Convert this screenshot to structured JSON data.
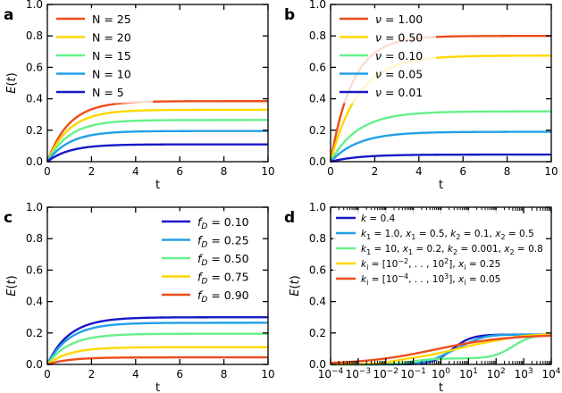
{
  "colors": {
    "dark_blue": "#1818c8",
    "light_blue": "#22a0e8",
    "green": "#66f08a",
    "yellow": "#ffd700",
    "orange": "#ee4c1c"
  },
  "chart_data": [
    {
      "type": "line",
      "panel_label": "a",
      "xlabel": "t",
      "ylabel": "E(t)",
      "xlim": [
        0,
        10
      ],
      "ylim": [
        0,
        1.0
      ],
      "xticks": [
        0,
        2,
        4,
        6,
        8,
        10
      ],
      "yticks": [
        0.0,
        0.2,
        0.4,
        0.6,
        0.8,
        1.0
      ],
      "xtick_labels": [
        "0",
        "2",
        "4",
        "6",
        "8",
        "10"
      ],
      "ytick_labels": [
        "0.0",
        "0.2",
        "0.4",
        "0.6",
        "0.8",
        "1.0"
      ],
      "grid": false,
      "legend_location": "upper-left",
      "series": [
        {
          "name": "N = 25",
          "color": "#ee4c1c",
          "plateau": 0.385,
          "rate": 1.0
        },
        {
          "name": "N = 20",
          "color": "#ffd700",
          "plateau": 0.33,
          "rate": 1.0
        },
        {
          "name": "N = 15",
          "color": "#66f08a",
          "plateau": 0.265,
          "rate": 1.0
        },
        {
          "name": "N = 10",
          "color": "#22a0e8",
          "plateau": 0.195,
          "rate": 1.0
        },
        {
          "name": "N = 5",
          "color": "#1818c8",
          "plateau": 0.11,
          "rate": 1.0
        }
      ]
    },
    {
      "type": "line",
      "panel_label": "b",
      "xlabel": "t",
      "ylabel": "",
      "xlim": [
        0,
        10
      ],
      "ylim": [
        0,
        1.0
      ],
      "xticks": [
        0,
        2,
        4,
        6,
        8,
        10
      ],
      "yticks": [
        0.0,
        0.2,
        0.4,
        0.6,
        0.8,
        1.0
      ],
      "xtick_labels": [
        "0",
        "2",
        "4",
        "6",
        "8",
        "10"
      ],
      "ytick_labels": [
        "0.0",
        "0.2",
        "0.4",
        "0.6",
        "0.8",
        "1.0"
      ],
      "grid": false,
      "legend_location": "upper-left",
      "series": [
        {
          "name": "ν = 1.00",
          "color": "#ee4c1c",
          "plateau": 0.8,
          "rate": 1.0
        },
        {
          "name": "ν = 0.50",
          "color": "#ffd700",
          "plateau": 0.675,
          "rate": 0.8
        },
        {
          "name": "ν = 0.10",
          "color": "#66f08a",
          "plateau": 0.32,
          "rate": 0.8
        },
        {
          "name": "ν = 0.05",
          "color": "#22a0e8",
          "plateau": 0.19,
          "rate": 0.8
        },
        {
          "name": "ν = 0.01",
          "color": "#1818c8",
          "plateau": 0.045,
          "rate": 0.8
        }
      ]
    },
    {
      "type": "line",
      "panel_label": "c",
      "xlabel": "t",
      "ylabel": "E(t)",
      "xlim": [
        0,
        10
      ],
      "ylim": [
        0,
        1.0
      ],
      "xticks": [
        0,
        2,
        4,
        6,
        8,
        10
      ],
      "yticks": [
        0.0,
        0.2,
        0.4,
        0.6,
        0.8,
        1.0
      ],
      "xtick_labels": [
        "0",
        "2",
        "4",
        "6",
        "8",
        "10"
      ],
      "ytick_labels": [
        "0.0",
        "0.2",
        "0.4",
        "0.6",
        "0.8",
        "1.0"
      ],
      "grid": false,
      "legend_location": "upper-right",
      "series": [
        {
          "name_prefix": "f",
          "name_sub": "D",
          "name_suffix": " = 0.10",
          "color": "#1818c8",
          "plateau": 0.3,
          "rate": 1.0
        },
        {
          "name_prefix": "f",
          "name_sub": "D",
          "name_suffix": " = 0.25",
          "color": "#22a0e8",
          "plateau": 0.265,
          "rate": 1.0
        },
        {
          "name_prefix": "f",
          "name_sub": "D",
          "name_suffix": " = 0.50",
          "color": "#66f08a",
          "plateau": 0.195,
          "rate": 1.0
        },
        {
          "name_prefix": "f",
          "name_sub": "D",
          "name_suffix": " = 0.75",
          "color": "#ffd700",
          "plateau": 0.11,
          "rate": 1.0
        },
        {
          "name_prefix": "f",
          "name_sub": "D",
          "name_suffix": " = 0.90",
          "color": "#ee4c1c",
          "plateau": 0.045,
          "rate": 1.0
        }
      ]
    },
    {
      "type": "line",
      "panel_label": "d",
      "xlabel": "t",
      "ylabel": "E(t)",
      "xscale": "log",
      "xlim": [
        0.0001,
        10000
      ],
      "ylim": [
        0,
        1.0
      ],
      "xtick_exponents": [
        "−4",
        "−3",
        "−2",
        "−1",
        "0",
        "1",
        "2",
        "3",
        "4"
      ],
      "xtick_base": "10",
      "yticks": [
        0.0,
        0.2,
        0.4,
        0.6,
        0.8,
        1.0
      ],
      "ytick_labels": [
        "0.0",
        "0.2",
        "0.4",
        "0.6",
        "0.8",
        "1.0"
      ],
      "grid": false,
      "legend_location": "upper-left",
      "series": [
        {
          "name": "k = 0.4",
          "color": "#1818c8",
          "plateau": 0.19,
          "steps": [
            {
              "w": 1.0,
              "logx0": 0.4,
              "sigma": 0.35
            }
          ]
        },
        {
          "name": "k1 = 1.0, x1 = 0.5, k2 = 0.1, x2 = 0.5",
          "color": "#22a0e8",
          "plateau": 0.19,
          "steps": [
            {
              "w": 0.5,
              "logx0": 0.0,
              "sigma": 0.35
            },
            {
              "w": 0.5,
              "logx0": 1.0,
              "sigma": 0.35
            }
          ]
        },
        {
          "name": "k1 = 10, x1 = 0.2, k2 = 0.001, x2 = 0.8",
          "color": "#66f08a",
          "plateau": 0.19,
          "steps": [
            {
              "w": 0.2,
              "logx0": -1.0,
              "sigma": 0.35
            },
            {
              "w": 0.8,
              "logx0": 2.6,
              "sigma": 0.35
            }
          ]
        },
        {
          "name": "ki = [10−2, . . , 102], xi = 0.25",
          "color": "#ffd700",
          "plateau": 0.19,
          "steps": [
            {
              "w": 0.25,
              "logx0": -1.6,
              "sigma": 0.4
            },
            {
              "w": 0.25,
              "logx0": 0.0,
              "sigma": 0.4
            },
            {
              "w": 0.25,
              "logx0": 1.0,
              "sigma": 0.4
            },
            {
              "w": 0.25,
              "logx0": 2.4,
              "sigma": 0.4
            }
          ]
        },
        {
          "name": "ki = [10−4, . . , 103], xi = 0.05",
          "color": "#ee4c1c",
          "plateau": 0.19,
          "steps": [
            {
              "w": 1.0,
              "logx0": -0.2,
              "sigma": 1.3
            }
          ]
        }
      ]
    }
  ]
}
